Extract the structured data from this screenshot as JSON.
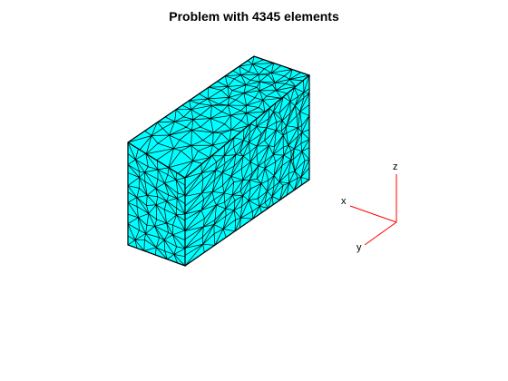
{
  "figure": {
    "title": "Problem with 4345 elements"
  },
  "mesh": {
    "element_count": 4345,
    "face_color": "#00ffff",
    "edge_color": "#000000"
  },
  "triad": {
    "axis_color": "#ff0000",
    "labels": {
      "x": "x",
      "y": "y",
      "z": "z"
    }
  }
}
